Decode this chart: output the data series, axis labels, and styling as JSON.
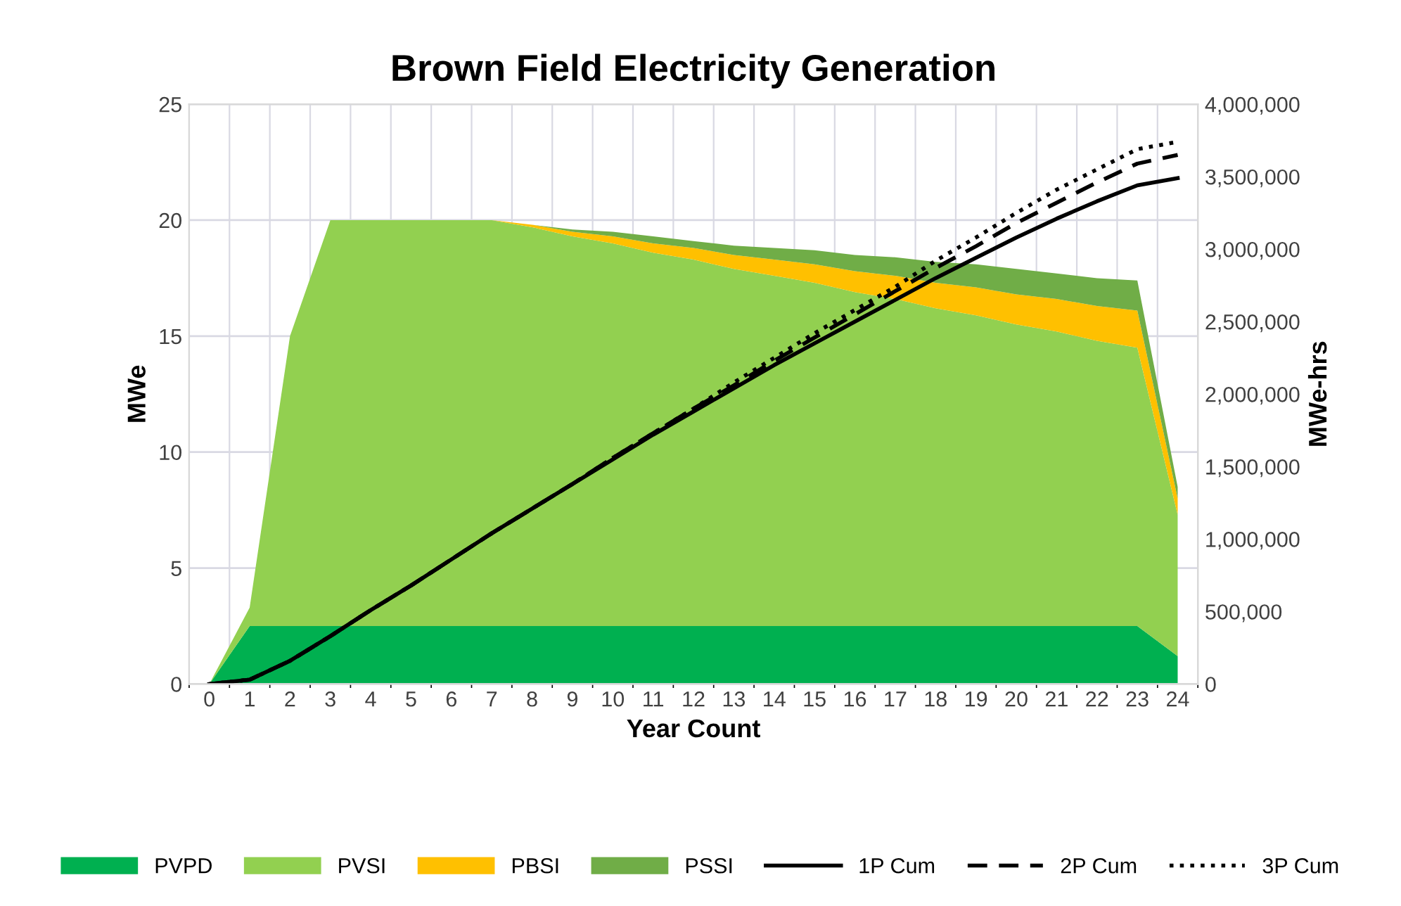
{
  "chart_data": {
    "type": "area",
    "stacked": true,
    "title": "Brown Field Electricity Generation",
    "xlabel": "Year Count",
    "ylabel": "MWe",
    "y2label": "MWe-hrs",
    "categories": [
      "0",
      "1",
      "2",
      "3",
      "4",
      "5",
      "6",
      "7",
      "8",
      "9",
      "10",
      "11",
      "12",
      "13",
      "14",
      "15",
      "16",
      "17",
      "18",
      "19",
      "20",
      "21",
      "22",
      "23",
      "24"
    ],
    "ylim": [
      0,
      25
    ],
    "yticks": [
      0,
      5,
      10,
      15,
      20,
      25
    ],
    "y2lim": [
      0,
      4000000
    ],
    "y2ticks": [
      {
        "value": 0,
        "label": "0"
      },
      {
        "value": 500000,
        "label": "500,000"
      },
      {
        "value": 1000000,
        "label": "1,000,000"
      },
      {
        "value": 1500000,
        "label": "1,500,000"
      },
      {
        "value": 2000000,
        "label": "2,000,000"
      },
      {
        "value": 2500000,
        "label": "2,500,000"
      },
      {
        "value": 3000000,
        "label": "3,000,000"
      },
      {
        "value": 3500000,
        "label": "3,500,000"
      },
      {
        "value": 4000000,
        "label": "4,000,000"
      }
    ],
    "grid": true,
    "legend": "bottom",
    "series": [
      {
        "name": "PVPD",
        "color": "#00b050",
        "values": [
          0,
          2.5,
          2.5,
          2.5,
          2.5,
          2.5,
          2.5,
          2.5,
          2.5,
          2.5,
          2.5,
          2.5,
          2.5,
          2.5,
          2.5,
          2.5,
          2.5,
          2.5,
          2.5,
          2.5,
          2.5,
          2.5,
          2.5,
          2.5,
          1.2
        ]
      },
      {
        "name": "PVSI",
        "color": "#92d050",
        "values": [
          0,
          0.8,
          12.5,
          17.5,
          17.5,
          17.5,
          17.5,
          17.5,
          17.2,
          16.8,
          16.5,
          16.1,
          15.8,
          15.4,
          15.1,
          14.8,
          14.4,
          14.1,
          13.7,
          13.4,
          13.0,
          12.7,
          12.3,
          12.0,
          6.1
        ]
      },
      {
        "name": "PBSI",
        "color": "#ffc000",
        "values": [
          null,
          null,
          null,
          null,
          null,
          null,
          null,
          0,
          0.1,
          0.2,
          0.3,
          0.4,
          0.5,
          0.6,
          0.7,
          0.8,
          0.9,
          1.0,
          1.1,
          1.2,
          1.3,
          1.4,
          1.5,
          1.6,
          0.7
        ]
      },
      {
        "name": "PSSI",
        "color": "#70ad47",
        "values": [
          null,
          null,
          null,
          null,
          null,
          null,
          null,
          null,
          0,
          0.1,
          0.2,
          0.3,
          0.3,
          0.4,
          0.5,
          0.6,
          0.7,
          0.8,
          0.9,
          1.0,
          1.1,
          1.1,
          1.2,
          1.3,
          0.5
        ]
      },
      {
        "name": "1P Cum",
        "type": "line",
        "axis": "y2",
        "color": "#000000",
        "line_style": "solid",
        "values": [
          0,
          30000,
          160000,
          330000,
          510000,
          680000,
          860000,
          1040000,
          1210000,
          1380000,
          1550000,
          1720000,
          1880000,
          2040000,
          2200000,
          2350000,
          2500000,
          2650000,
          2800000,
          2940000,
          3080000,
          3210000,
          3330000,
          3440000,
          3490000
        ]
      },
      {
        "name": "2P Cum",
        "type": "line",
        "axis": "y2",
        "color": "#000000",
        "line_style": "dashed",
        "values": [
          0,
          30000,
          160000,
          330000,
          510000,
          680000,
          860000,
          1040000,
          1210000,
          1380000,
          1560000,
          1730000,
          1900000,
          2060000,
          2230000,
          2390000,
          2550000,
          2710000,
          2870000,
          3020000,
          3180000,
          3320000,
          3460000,
          3590000,
          3650000
        ]
      },
      {
        "name": "3P Cum",
        "type": "line",
        "axis": "y2",
        "color": "#000000",
        "line_style": "dotted",
        "values": [
          0,
          30000,
          160000,
          330000,
          510000,
          680000,
          860000,
          1040000,
          1210000,
          1380000,
          1560000,
          1730000,
          1900000,
          2080000,
          2250000,
          2420000,
          2580000,
          2740000,
          2920000,
          3080000,
          3250000,
          3410000,
          3550000,
          3690000,
          3740000
        ]
      }
    ]
  }
}
